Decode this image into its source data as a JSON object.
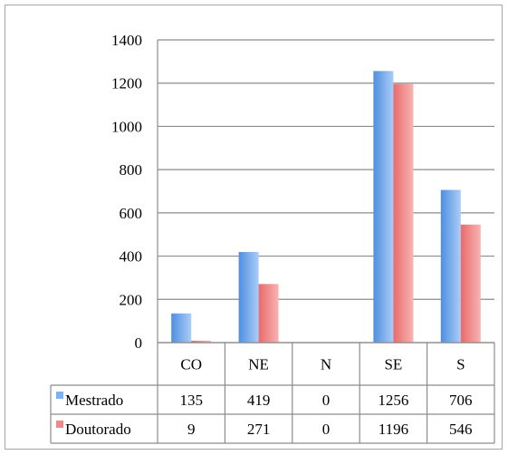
{
  "chart_data": {
    "type": "bar",
    "title": "",
    "xlabel": "",
    "ylabel": "",
    "categories": [
      "CO",
      "NE",
      "N",
      "SE",
      "S"
    ],
    "series": [
      {
        "name": "Mestrado",
        "values": [
          135,
          419,
          0,
          1256,
          706
        ],
        "color": "#7fb2ee"
      },
      {
        "name": "Doutorado",
        "values": [
          9,
          271,
          0,
          1196,
          546
        ],
        "color": "#f08a8a"
      }
    ],
    "ylim": [
      0,
      1400
    ],
    "yticks": [
      0,
      200,
      400,
      600,
      800,
      1000,
      1200,
      1400
    ],
    "grid": true,
    "legend": "data-table"
  }
}
